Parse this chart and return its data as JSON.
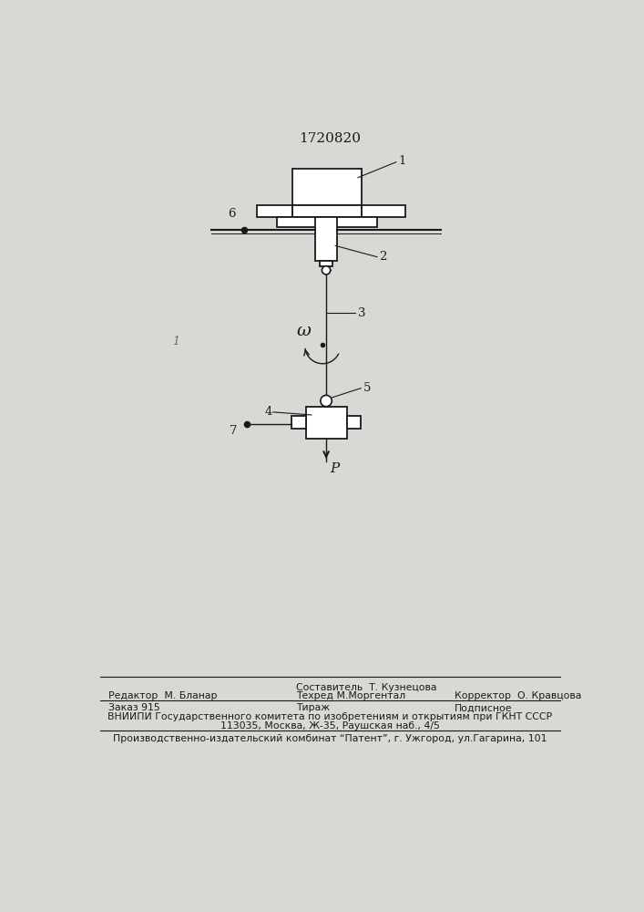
{
  "title": "1720820",
  "bg_color": "#d8d8d4",
  "paper_color": "#e8e8e4",
  "line_color": "#1a1a1a",
  "label_1": "1",
  "label_2": "2",
  "label_3": "3",
  "label_4": "4",
  "label_5": "5",
  "label_6": "6",
  "label_7": "7",
  "label_omega": "ω",
  "label_P": "P",
  "footer_line1_left": "Редактор  М. Бланар",
  "footer_line1_center_top": "Составитель  Т. Кузнецова",
  "footer_line1_center_bot": "Техред М.Моргентал",
  "footer_line1_right": "Корректор  О. Кравцова",
  "footer_line2_left": "Заказ 915",
  "footer_line2_center": "Тираж",
  "footer_line2_right": "Подписное",
  "footer_line3": "ВНИИПИ Государственного комитета по изобретениям и открытиям при ГКНТ СССР",
  "footer_line4": "113035, Москва, Ж-35, Раушская наб., 4/5",
  "footer_line5": "Производственно-издательский комбинат “Патент”, г. Ужгород, ул.Гагарина, 101"
}
